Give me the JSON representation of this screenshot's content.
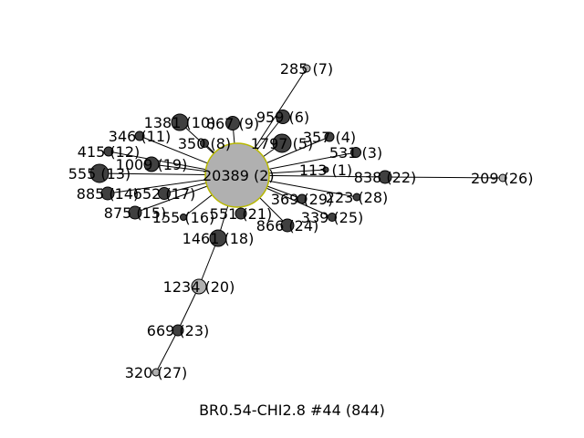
{
  "caption": "BR0.54-CHI2.8 #44 (844)",
  "colors": {
    "edge": "#000000",
    "node_dark": "#404040",
    "node_light": "#b0b0b0",
    "node_outline": "#000000",
    "hub_outline": "#b8b800",
    "label": "#000000"
  },
  "nodes": [
    {
      "id": "hub",
      "label": "20389 (2)",
      "size": 70,
      "shade": "light",
      "hub": true
    },
    {
      "id": "n285",
      "label": "285 (7)",
      "size": 8,
      "shade": "light"
    },
    {
      "id": "n959",
      "label": "959 (6)",
      "size": 15,
      "shade": "dark"
    },
    {
      "id": "n1381",
      "label": "1381 (10)",
      "size": 18,
      "shade": "dark"
    },
    {
      "id": "n867",
      "label": "867 (9)",
      "size": 15,
      "shade": "dark"
    },
    {
      "id": "n346",
      "label": "346 (11)",
      "size": 10,
      "shade": "dark"
    },
    {
      "id": "n350",
      "label": "350 (8)",
      "size": 9,
      "shade": "dark"
    },
    {
      "id": "n1797",
      "label": "1797 (5)",
      "size": 20,
      "shade": "dark"
    },
    {
      "id": "n357",
      "label": "357 (4)",
      "size": 10,
      "shade": "dark"
    },
    {
      "id": "n415",
      "label": "415 (12)",
      "size": 10,
      "shade": "dark"
    },
    {
      "id": "n531",
      "label": "531 (3)",
      "size": 11,
      "shade": "dark"
    },
    {
      "id": "n1009",
      "label": "1009 (19)",
      "size": 16,
      "shade": "dark"
    },
    {
      "id": "n555",
      "label": "555 (13)",
      "size": 20,
      "shade": "dark"
    },
    {
      "id": "n113",
      "label": "113 (1)",
      "size": 6,
      "shade": "dark"
    },
    {
      "id": "n838",
      "label": "838 (22)",
      "size": 14,
      "shade": "dark"
    },
    {
      "id": "n209",
      "label": "209 (26)",
      "size": 8,
      "shade": "light"
    },
    {
      "id": "n885",
      "label": "885 (14)",
      "size": 14,
      "shade": "dark"
    },
    {
      "id": "n652",
      "label": "652 (17)",
      "size": 13,
      "shade": "dark"
    },
    {
      "id": "n369",
      "label": "369 (29)",
      "size": 10,
      "shade": "dark"
    },
    {
      "id": "n223",
      "label": "223 (28)",
      "size": 8,
      "shade": "dark"
    },
    {
      "id": "n875",
      "label": "875 (15)",
      "size": 14,
      "shade": "dark"
    },
    {
      "id": "n155",
      "label": "155 (16)",
      "size": 7,
      "shade": "dark"
    },
    {
      "id": "n551",
      "label": "551 (21)",
      "size": 12,
      "shade": "dark"
    },
    {
      "id": "n866",
      "label": "866 (24)",
      "size": 14,
      "shade": "dark"
    },
    {
      "id": "n339",
      "label": "339 (25)",
      "size": 9,
      "shade": "dark"
    },
    {
      "id": "n1461",
      "label": "1461 (18)",
      "size": 18,
      "shade": "dark"
    },
    {
      "id": "n1234",
      "label": "1234 (20)",
      "size": 16,
      "shade": "light"
    },
    {
      "id": "n669",
      "label": "669 (23)",
      "size": 12,
      "shade": "dark"
    },
    {
      "id": "n320",
      "label": "320 (27)",
      "size": 8,
      "shade": "light"
    }
  ],
  "edges": [
    [
      "hub",
      "n285"
    ],
    [
      "hub",
      "n959"
    ],
    [
      "hub",
      "n1381"
    ],
    [
      "hub",
      "n867"
    ],
    [
      "hub",
      "n346"
    ],
    [
      "hub",
      "n350"
    ],
    [
      "hub",
      "n1797"
    ],
    [
      "hub",
      "n357"
    ],
    [
      "hub",
      "n415"
    ],
    [
      "hub",
      "n531"
    ],
    [
      "hub",
      "n1009"
    ],
    [
      "hub",
      "n555"
    ],
    [
      "hub",
      "n113"
    ],
    [
      "hub",
      "n838"
    ],
    [
      "hub",
      "n885"
    ],
    [
      "hub",
      "n652"
    ],
    [
      "hub",
      "n369"
    ],
    [
      "hub",
      "n223"
    ],
    [
      "hub",
      "n875"
    ],
    [
      "hub",
      "n155"
    ],
    [
      "hub",
      "n551"
    ],
    [
      "hub",
      "n866"
    ],
    [
      "hub",
      "n339"
    ],
    [
      "hub",
      "n1461"
    ],
    [
      "n838",
      "n209"
    ],
    [
      "n1461",
      "n1234"
    ],
    [
      "n1234",
      "n669"
    ],
    [
      "n669",
      "n320"
    ]
  ]
}
